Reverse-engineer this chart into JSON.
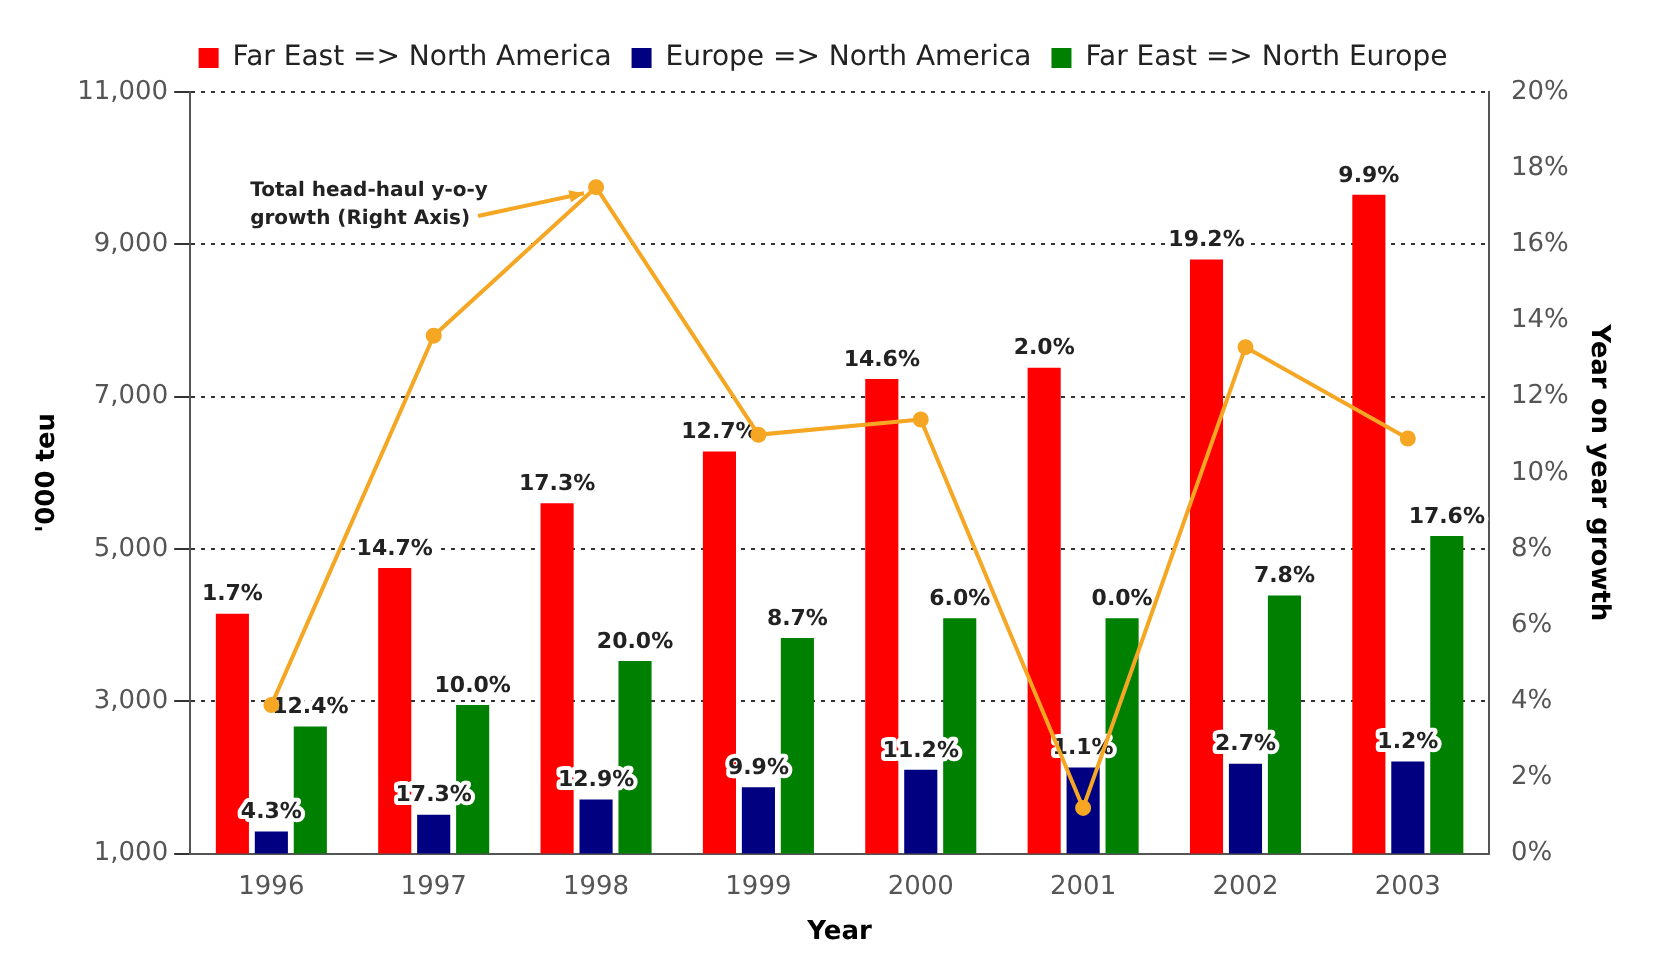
{
  "chart_data": {
    "type": "bar",
    "xlabel": "Year",
    "ylabel": "'000 teu",
    "y2label": "Year on year growth",
    "categories": [
      "1996",
      "1997",
      "1998",
      "1999",
      "2000",
      "2001",
      "2002",
      "2003"
    ],
    "series": [
      {
        "name": "Far East => North America",
        "color": "#ff0000",
        "values": [
          4150,
          4750,
          5600,
          6280,
          7230,
          7380,
          8800,
          9650
        ]
      },
      {
        "name": "Europe => North America",
        "color": "#000080",
        "values": [
          1290,
          1510,
          1710,
          1870,
          2100,
          2130,
          2180,
          2210
        ]
      },
      {
        "name": "Far East => North Europe",
        "color": "#008000",
        "values": [
          2670,
          2950,
          3530,
          3830,
          4090,
          4090,
          4390,
          5170
        ]
      },
      {
        "type": "line",
        "axis": "y2",
        "color": "#f5a623",
        "marker": "circle",
        "values": [
          3.9,
          13.6,
          17.5,
          11.0,
          11.4,
          1.2,
          13.3,
          10.9
        ]
      }
    ],
    "ylim": [
      1000,
      11000
    ],
    "yticks": [
      {
        "value": 1000,
        "label": "1,000"
      },
      {
        "value": 3000,
        "label": "3,000"
      },
      {
        "value": 5000,
        "label": "5,000"
      },
      {
        "value": 7000,
        "label": "7,000"
      },
      {
        "value": 9000,
        "label": "9,000"
      },
      {
        "value": 11000,
        "label": "11,000"
      }
    ],
    "y2lim": [
      0,
      20
    ],
    "y2ticks": [
      {
        "value": 0,
        "label": "0%"
      },
      {
        "value": 2,
        "label": "2%"
      },
      {
        "value": 4,
        "label": "4%"
      },
      {
        "value": 6,
        "label": "6%"
      },
      {
        "value": 8,
        "label": "8%"
      },
      {
        "value": 10,
        "label": "10%"
      },
      {
        "value": 12,
        "label": "12%"
      },
      {
        "value": 14,
        "label": "14%"
      },
      {
        "value": 16,
        "label": "16%"
      },
      {
        "value": 18,
        "label": "18%"
      },
      {
        "value": 20,
        "label": "20%"
      }
    ],
    "grid": "y",
    "legend": "top",
    "annotations": [
      {
        "text": "Total head-haul y-o-y growth (Right Axis)",
        "x": "1998",
        "y": 9750
      },
      "1.7%",
      "14.7%",
      "17.3%",
      "12.7%",
      "14.6%",
      "2.0%",
      "19.2%",
      "9.9%",
      "4.3%",
      "17.3%",
      "12.9%",
      "9.9%",
      "11.2%",
      "1.1%",
      "2.7%",
      "1.2%",
      "12.4%",
      "10.0%",
      "20.0%",
      "8.7%",
      "6.0%",
      "0.0%",
      "7.8%",
      "17.6%"
    ]
  }
}
